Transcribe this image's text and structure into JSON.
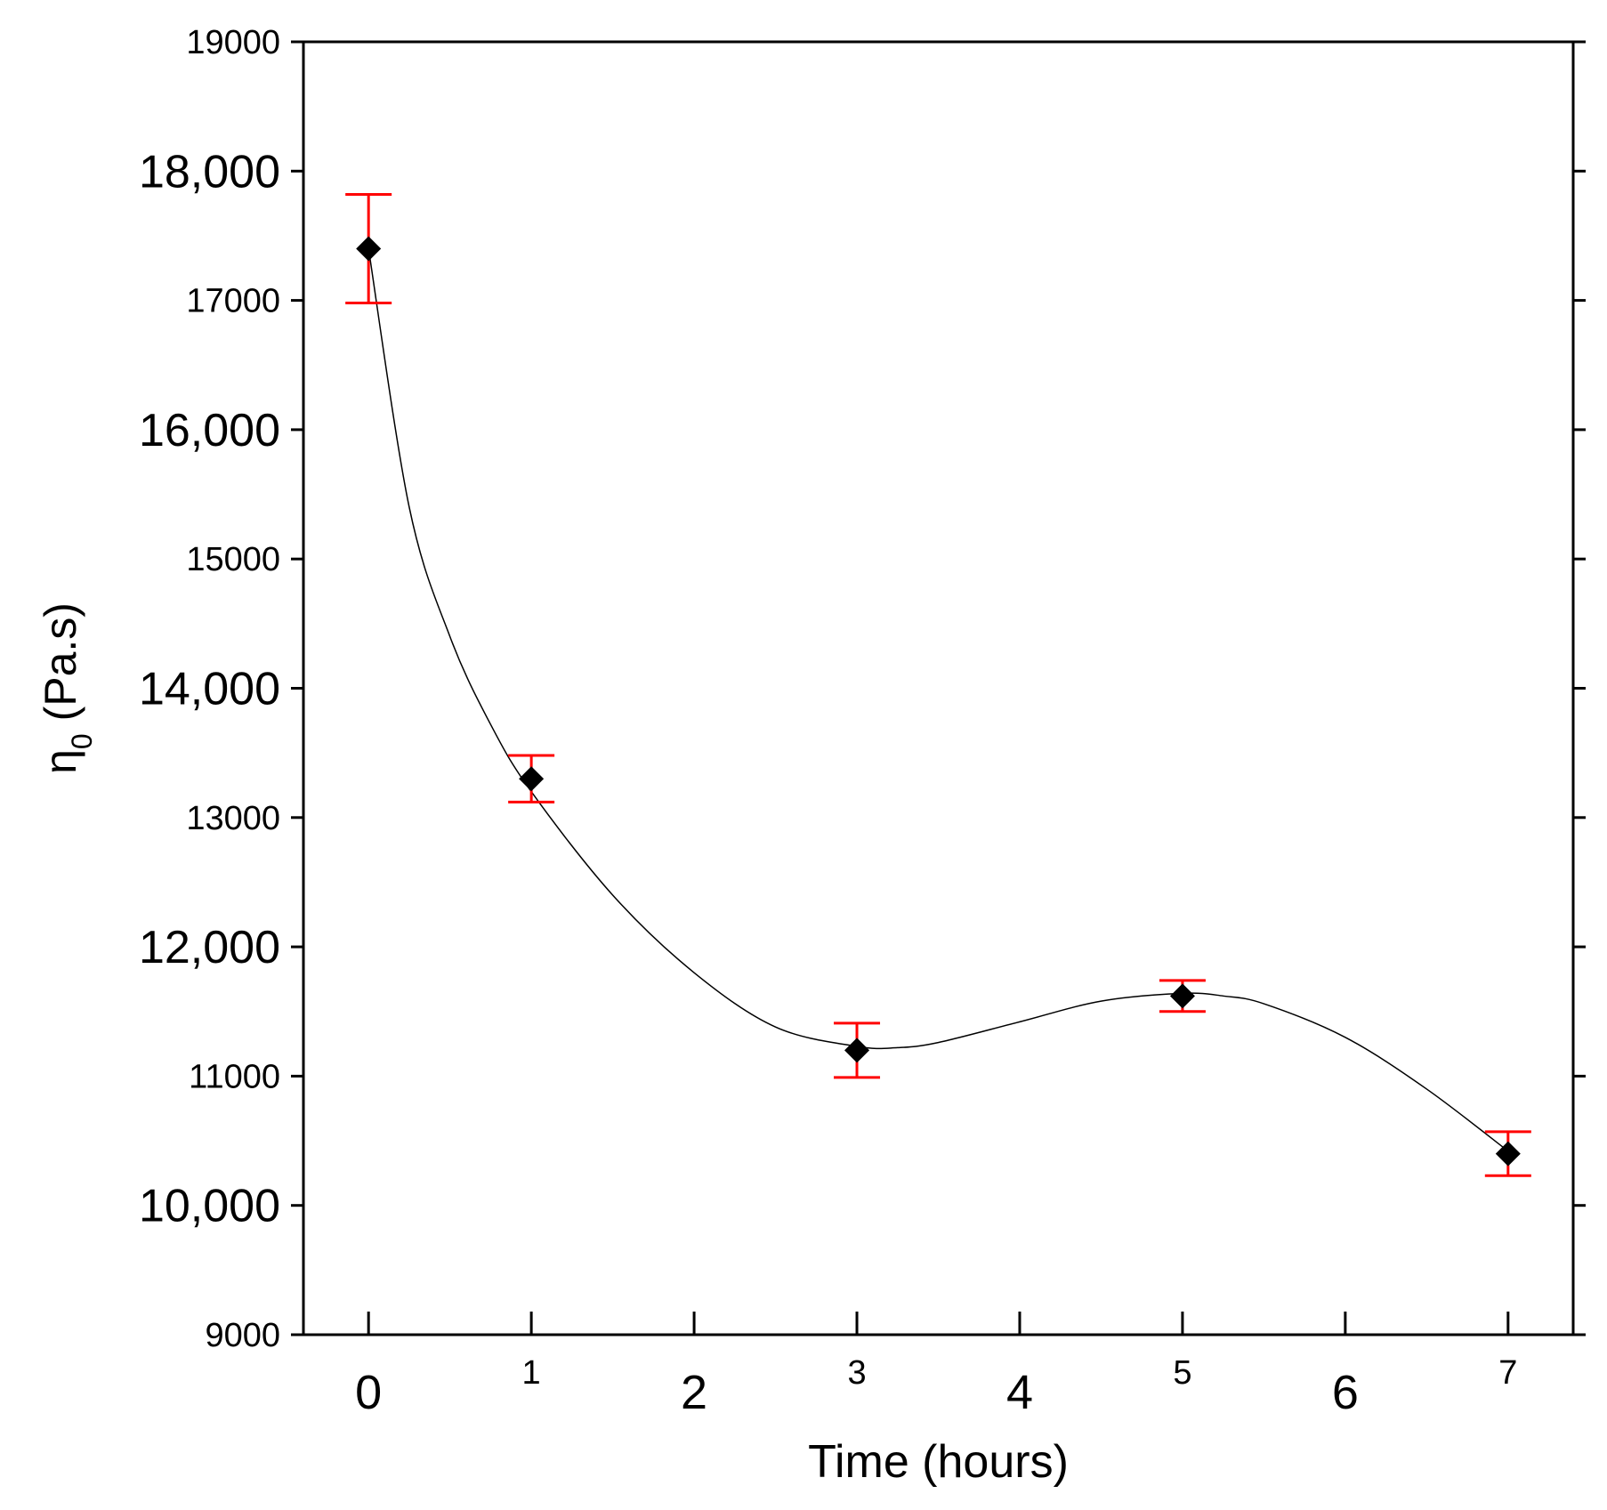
{
  "chart_data": {
    "type": "scatter",
    "title": "",
    "xlabel": "Time (hours)",
    "ylabel_symbol": "η",
    "ylabel_subscript": "0",
    "ylabel_unit": " (Pa.s)",
    "xlim": [
      -0.4,
      7.4
    ],
    "ylim": [
      9000,
      19000
    ],
    "x_ticks": [
      {
        "value": 0,
        "label": "0",
        "size": "large"
      },
      {
        "value": 1,
        "label": "1",
        "size": "small"
      },
      {
        "value": 2,
        "label": "2",
        "size": "large"
      },
      {
        "value": 3,
        "label": "3",
        "size": "small"
      },
      {
        "value": 4,
        "label": "4",
        "size": "large"
      },
      {
        "value": 5,
        "label": "5",
        "size": "small"
      },
      {
        "value": 6,
        "label": "6",
        "size": "large"
      },
      {
        "value": 7,
        "label": "7",
        "size": "small"
      }
    ],
    "y_ticks": [
      {
        "value": 9000,
        "label": "9000",
        "size": "small"
      },
      {
        "value": 10000,
        "label": "10,000",
        "size": "large"
      },
      {
        "value": 11000,
        "label": "11000",
        "size": "small"
      },
      {
        "value": 12000,
        "label": "12,000",
        "size": "large"
      },
      {
        "value": 13000,
        "label": "13000",
        "size": "small"
      },
      {
        "value": 14000,
        "label": "14,000",
        "size": "large"
      },
      {
        "value": 15000,
        "label": "15000",
        "size": "small"
      },
      {
        "value": 16000,
        "label": "16,000",
        "size": "large"
      },
      {
        "value": 17000,
        "label": "17000",
        "size": "small"
      },
      {
        "value": 18000,
        "label": "18,000",
        "size": "large"
      },
      {
        "value": 19000,
        "label": "19000",
        "size": "small"
      }
    ],
    "series": [
      {
        "x": [
          0,
          1,
          3,
          5,
          7
        ],
        "y": [
          17400,
          13300,
          11200,
          11620,
          10400
        ],
        "error": [
          420,
          180,
          210,
          120,
          170
        ],
        "marker": "diamond",
        "marker_color": "#000000",
        "error_color": "#ff0000"
      }
    ],
    "trend_curve": {
      "x": [
        0,
        0.25,
        0.5,
        0.75,
        1,
        1.5,
        2,
        2.5,
        3,
        3.25,
        3.5,
        4,
        4.5,
        5,
        5.25,
        5.5,
        6,
        6.5,
        7
      ],
      "y": [
        17400,
        15400,
        14400,
        13720,
        13200,
        12400,
        11800,
        11380,
        11230,
        11220,
        11260,
        11420,
        11580,
        11640,
        11620,
        11560,
        11300,
        10900,
        10420
      ],
      "color": "#000000"
    },
    "grid": false,
    "legend": "none"
  }
}
